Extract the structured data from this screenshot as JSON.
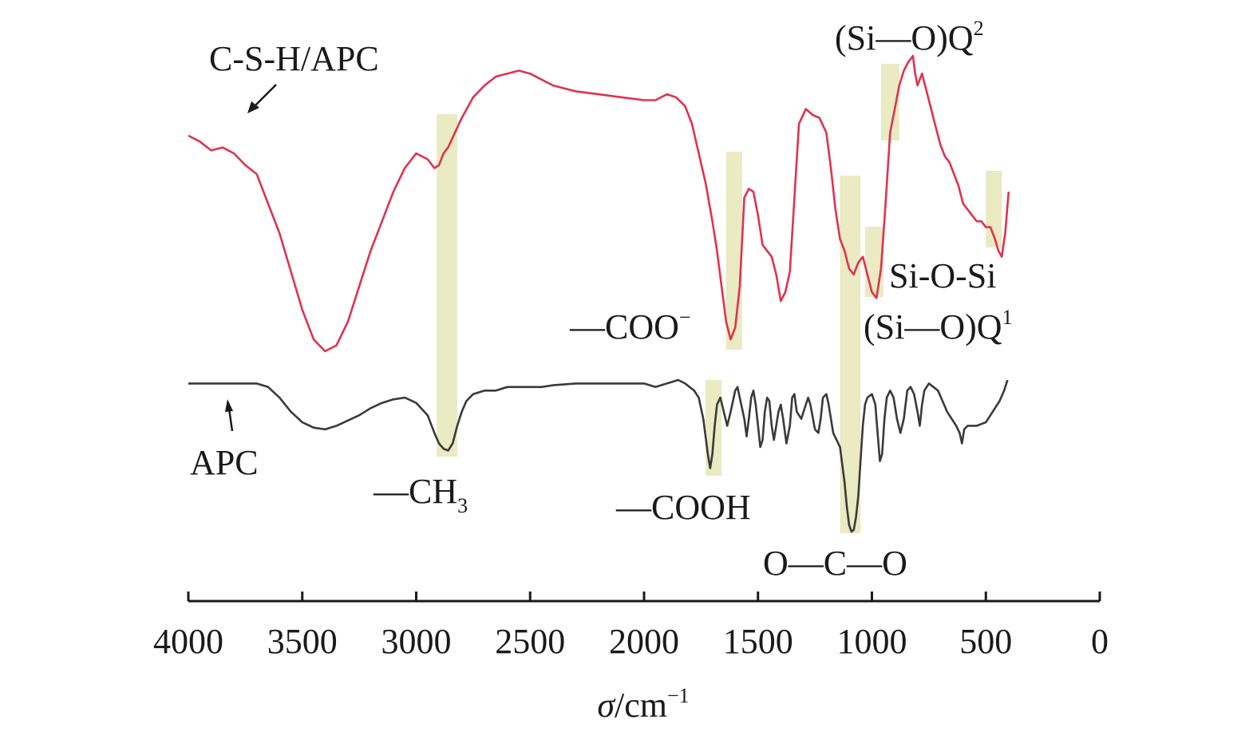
{
  "chart_data": {
    "type": "line",
    "xlabel": "σ/cm⁻¹",
    "x_reversed": true,
    "xlim": [
      4000,
      0
    ],
    "x_ticks": [
      4000,
      3500,
      3000,
      2500,
      2000,
      1500,
      1000,
      500,
      0
    ],
    "x_tick_labels": [
      "4000",
      "3500",
      "3000",
      "2500",
      "2000",
      "1500",
      "1000",
      "500",
      "0"
    ],
    "y_axis": "offset transmittance, no scale shown",
    "highlight_color": "#e6e6b8",
    "highlight_bands": [
      {
        "from": 2910,
        "to": 2820
      },
      {
        "from": 1730,
        "to": 1660
      },
      {
        "from": 1640,
        "to": 1570
      },
      {
        "from": 1140,
        "to": 1050
      },
      {
        "from": 1030,
        "to": 950
      },
      {
        "from": 960,
        "to": 880
      },
      {
        "from": 500,
        "to": 430
      }
    ],
    "series": [
      {
        "name": "C-S-H/APC",
        "color": "#e0324f",
        "points": [
          [
            4000,
            91
          ],
          [
            3950,
            89
          ],
          [
            3900,
            86
          ],
          [
            3850,
            87
          ],
          [
            3800,
            85
          ],
          [
            3750,
            81
          ],
          [
            3700,
            78
          ],
          [
            3650,
            68
          ],
          [
            3600,
            58
          ],
          [
            3550,
            45
          ],
          [
            3500,
            32
          ],
          [
            3450,
            22
          ],
          [
            3400,
            18
          ],
          [
            3350,
            20
          ],
          [
            3300,
            28
          ],
          [
            3250,
            40
          ],
          [
            3200,
            52
          ],
          [
            3150,
            62
          ],
          [
            3100,
            72
          ],
          [
            3050,
            80
          ],
          [
            3000,
            85
          ],
          [
            2950,
            83
          ],
          [
            2920,
            80
          ],
          [
            2900,
            81
          ],
          [
            2880,
            85
          ],
          [
            2860,
            87
          ],
          [
            2800,
            97
          ],
          [
            2750,
            104
          ],
          [
            2700,
            108
          ],
          [
            2650,
            111
          ],
          [
            2600,
            112
          ],
          [
            2550,
            113
          ],
          [
            2500,
            112
          ],
          [
            2450,
            110
          ],
          [
            2400,
            108
          ],
          [
            2350,
            107
          ],
          [
            2300,
            106
          ],
          [
            2200,
            105
          ],
          [
            2100,
            104
          ],
          [
            2000,
            103
          ],
          [
            1950,
            103
          ],
          [
            1900,
            105
          ],
          [
            1860,
            104
          ],
          [
            1820,
            101
          ],
          [
            1790,
            95
          ],
          [
            1760,
            85
          ],
          [
            1730,
            75
          ],
          [
            1700,
            62
          ],
          [
            1680,
            52
          ],
          [
            1660,
            40
          ],
          [
            1640,
            28
          ],
          [
            1620,
            22
          ],
          [
            1600,
            26
          ],
          [
            1580,
            40
          ],
          [
            1560,
            70
          ],
          [
            1540,
            73
          ],
          [
            1520,
            72
          ],
          [
            1500,
            64
          ],
          [
            1480,
            54
          ],
          [
            1460,
            52
          ],
          [
            1440,
            50
          ],
          [
            1420,
            44
          ],
          [
            1400,
            35
          ],
          [
            1380,
            38
          ],
          [
            1360,
            45
          ],
          [
            1340,
            70
          ],
          [
            1320,
            95
          ],
          [
            1290,
            100
          ],
          [
            1260,
            98
          ],
          [
            1230,
            97
          ],
          [
            1200,
            92
          ],
          [
            1180,
            80
          ],
          [
            1160,
            66
          ],
          [
            1140,
            56
          ],
          [
            1120,
            52
          ],
          [
            1100,
            46
          ],
          [
            1080,
            44
          ],
          [
            1060,
            48
          ],
          [
            1040,
            50
          ],
          [
            1020,
            44
          ],
          [
            1000,
            38
          ],
          [
            980,
            36
          ],
          [
            960,
            46
          ],
          [
            940,
            68
          ],
          [
            920,
            92
          ],
          [
            900,
            100
          ],
          [
            880,
            108
          ],
          [
            860,
            113
          ],
          [
            840,
            116
          ],
          [
            820,
            118
          ],
          [
            810,
            112
          ],
          [
            800,
            108
          ],
          [
            780,
            112
          ],
          [
            760,
            106
          ],
          [
            740,
            100
          ],
          [
            720,
            94
          ],
          [
            700,
            88
          ],
          [
            680,
            84
          ],
          [
            660,
            82
          ],
          [
            640,
            78
          ],
          [
            620,
            74
          ],
          [
            600,
            68
          ],
          [
            580,
            66
          ],
          [
            560,
            64
          ],
          [
            540,
            62
          ],
          [
            520,
            62
          ],
          [
            500,
            60
          ],
          [
            480,
            60
          ],
          [
            460,
            56
          ],
          [
            445,
            52
          ],
          [
            430,
            50
          ],
          [
            415,
            58
          ],
          [
            400,
            72
          ]
        ]
      },
      {
        "name": "APC",
        "color": "#3a3a3a",
        "points": [
          [
            4000,
            50
          ],
          [
            3950,
            50
          ],
          [
            3900,
            50
          ],
          [
            3850,
            50
          ],
          [
            3800,
            50
          ],
          [
            3750,
            50
          ],
          [
            3700,
            50
          ],
          [
            3650,
            49
          ],
          [
            3600,
            46
          ],
          [
            3550,
            42
          ],
          [
            3500,
            39
          ],
          [
            3450,
            37.5
          ],
          [
            3400,
            37
          ],
          [
            3350,
            38
          ],
          [
            3300,
            39.5
          ],
          [
            3250,
            41
          ],
          [
            3200,
            43
          ],
          [
            3150,
            44.5
          ],
          [
            3100,
            45.5
          ],
          [
            3050,
            46
          ],
          [
            3000,
            44.5
          ],
          [
            2950,
            41
          ],
          [
            2920,
            36
          ],
          [
            2900,
            33
          ],
          [
            2880,
            31.5
          ],
          [
            2860,
            31
          ],
          [
            2840,
            33
          ],
          [
            2820,
            38
          ],
          [
            2800,
            42
          ],
          [
            2780,
            45
          ],
          [
            2750,
            47
          ],
          [
            2700,
            48
          ],
          [
            2650,
            48
          ],
          [
            2600,
            49
          ],
          [
            2550,
            49
          ],
          [
            2500,
            49
          ],
          [
            2450,
            49
          ],
          [
            2400,
            49.5
          ],
          [
            2300,
            50
          ],
          [
            2200,
            50
          ],
          [
            2100,
            50
          ],
          [
            2000,
            50
          ],
          [
            1950,
            49
          ],
          [
            1900,
            50
          ],
          [
            1850,
            51
          ],
          [
            1820,
            50
          ],
          [
            1800,
            49
          ],
          [
            1780,
            48
          ],
          [
            1760,
            46
          ],
          [
            1740,
            40
          ],
          [
            1720,
            30
          ],
          [
            1710,
            26
          ],
          [
            1700,
            30
          ],
          [
            1690,
            38
          ],
          [
            1680,
            44
          ],
          [
            1665,
            46
          ],
          [
            1650,
            42
          ],
          [
            1635,
            38
          ],
          [
            1620,
            42
          ],
          [
            1600,
            48
          ],
          [
            1590,
            49
          ],
          [
            1580,
            46
          ],
          [
            1560,
            40
          ],
          [
            1550,
            35
          ],
          [
            1540,
            40
          ],
          [
            1530,
            46
          ],
          [
            1520,
            48
          ],
          [
            1510,
            44
          ],
          [
            1500,
            38
          ],
          [
            1490,
            32
          ],
          [
            1480,
            34
          ],
          [
            1470,
            42
          ],
          [
            1460,
            46
          ],
          [
            1450,
            45
          ],
          [
            1440,
            38
          ],
          [
            1430,
            34
          ],
          [
            1420,
            38
          ],
          [
            1410,
            42
          ],
          [
            1400,
            44
          ],
          [
            1390,
            40
          ],
          [
            1375,
            33
          ],
          [
            1360,
            38
          ],
          [
            1350,
            46
          ],
          [
            1340,
            47
          ],
          [
            1330,
            42
          ],
          [
            1310,
            40
          ],
          [
            1290,
            44
          ],
          [
            1280,
            46
          ],
          [
            1270,
            44
          ],
          [
            1250,
            37
          ],
          [
            1235,
            36
          ],
          [
            1225,
            40
          ],
          [
            1215,
            46
          ],
          [
            1200,
            47
          ],
          [
            1190,
            44
          ],
          [
            1170,
            36
          ],
          [
            1155,
            34
          ],
          [
            1140,
            32
          ],
          [
            1120,
            22
          ],
          [
            1110,
            15
          ],
          [
            1100,
            10
          ],
          [
            1090,
            8
          ],
          [
            1080,
            8.5
          ],
          [
            1070,
            12
          ],
          [
            1060,
            18
          ],
          [
            1050,
            28
          ],
          [
            1040,
            38
          ],
          [
            1030,
            44
          ],
          [
            1020,
            46
          ],
          [
            1000,
            47
          ],
          [
            985,
            44
          ],
          [
            975,
            36
          ],
          [
            965,
            28
          ],
          [
            955,
            30
          ],
          [
            945,
            40
          ],
          [
            935,
            46
          ],
          [
            920,
            48
          ],
          [
            905,
            46
          ],
          [
            890,
            40
          ],
          [
            875,
            36
          ],
          [
            860,
            40
          ],
          [
            845,
            48
          ],
          [
            830,
            49
          ],
          [
            815,
            47
          ],
          [
            800,
            42
          ],
          [
            790,
            38
          ],
          [
            780,
            44
          ],
          [
            770,
            48
          ],
          [
            750,
            50
          ],
          [
            730,
            49
          ],
          [
            710,
            48
          ],
          [
            690,
            45
          ],
          [
            670,
            42
          ],
          [
            650,
            40
          ],
          [
            630,
            38
          ],
          [
            615,
            36
          ],
          [
            605,
            33
          ],
          [
            595,
            37
          ],
          [
            580,
            38
          ],
          [
            560,
            38
          ],
          [
            540,
            38
          ],
          [
            520,
            38.5
          ],
          [
            500,
            39
          ],
          [
            480,
            41
          ],
          [
            460,
            43
          ],
          [
            440,
            45
          ],
          [
            420,
            48
          ],
          [
            405,
            51
          ]
        ]
      }
    ],
    "annotations": {
      "series_label_top": "C-S-H/APC",
      "series_label_bottom": "APC",
      "q2": "(Si—O)Q",
      "q2_sup": "2",
      "sios": "Si-O-Si",
      "q1": "(Si—O)Q",
      "q1_sup": "1",
      "coo": "—COO",
      "coo_sup": "−",
      "ch3": "—CH",
      "ch3_sub": "3",
      "cooh": "—COOH",
      "oco": "O—C—O"
    },
    "axis_label": {
      "symbol": "σ",
      "unit": "/cm",
      "exp": "−1"
    }
  }
}
